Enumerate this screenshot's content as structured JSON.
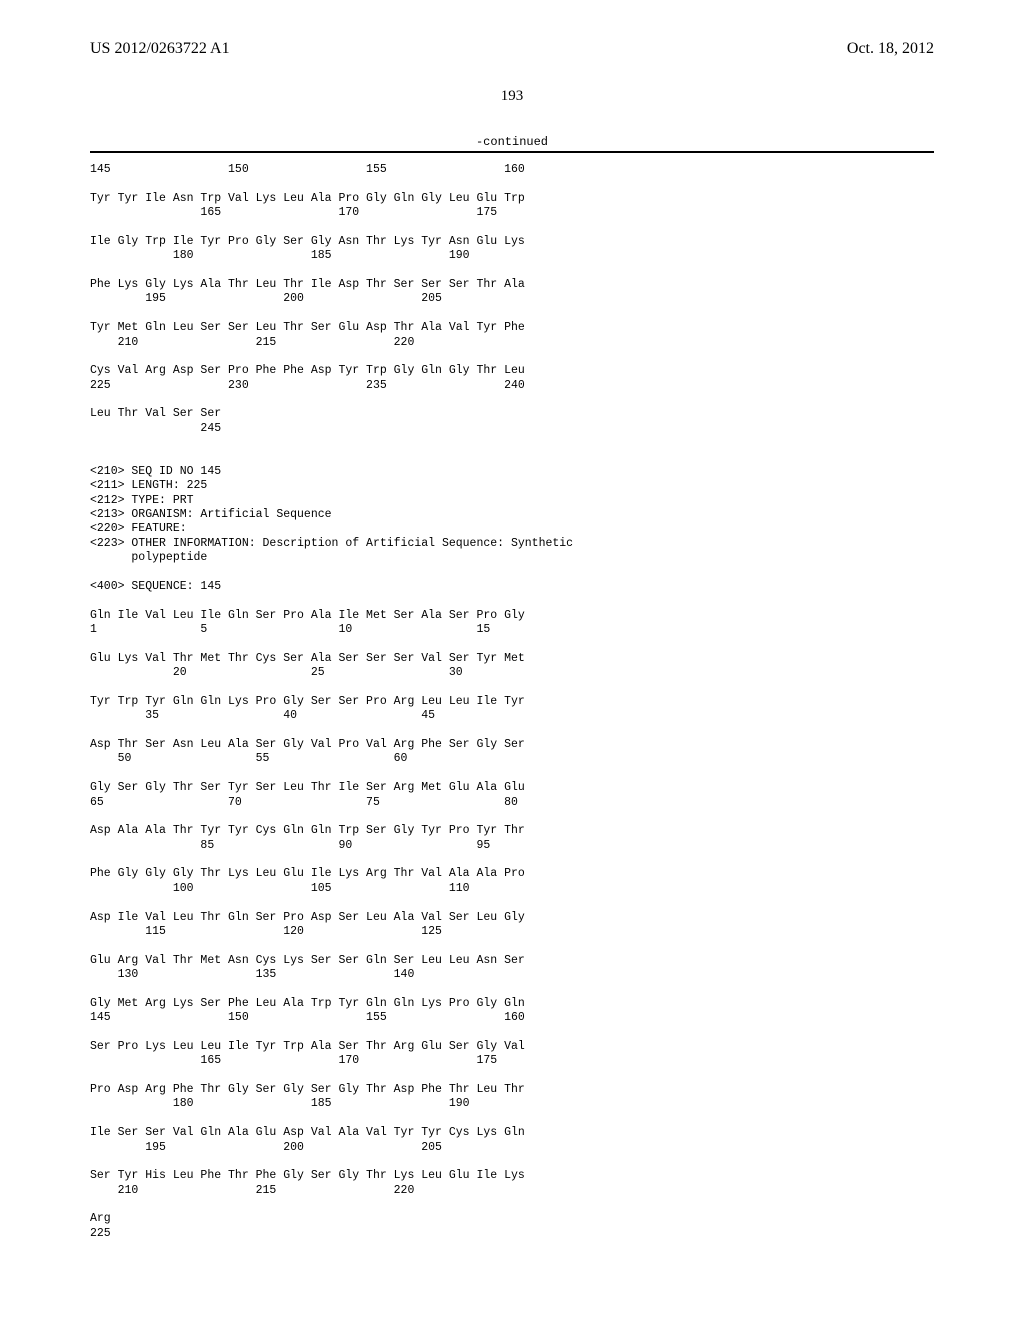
{
  "header": {
    "pub_number": "US 2012/0263722 A1",
    "pub_date": "Oct. 18, 2012"
  },
  "page_number": "193",
  "continued_label": "-continued",
  "seq_text": "145                 150                 155                 160\n\nTyr Tyr Ile Asn Trp Val Lys Leu Ala Pro Gly Gln Gly Leu Glu Trp\n                165                 170                 175\n\nIle Gly Trp Ile Tyr Pro Gly Ser Gly Asn Thr Lys Tyr Asn Glu Lys\n            180                 185                 190\n\nPhe Lys Gly Lys Ala Thr Leu Thr Ile Asp Thr Ser Ser Ser Thr Ala\n        195                 200                 205\n\nTyr Met Gln Leu Ser Ser Leu Thr Ser Glu Asp Thr Ala Val Tyr Phe\n    210                 215                 220\n\nCys Val Arg Asp Ser Pro Phe Phe Asp Tyr Trp Gly Gln Gly Thr Leu\n225                 230                 235                 240\n\nLeu Thr Val Ser Ser\n                245\n\n\n<210> SEQ ID NO 145\n<211> LENGTH: 225\n<212> TYPE: PRT\n<213> ORGANISM: Artificial Sequence\n<220> FEATURE:\n<223> OTHER INFORMATION: Description of Artificial Sequence: Synthetic\n      polypeptide\n\n<400> SEQUENCE: 145\n\nGln Ile Val Leu Ile Gln Ser Pro Ala Ile Met Ser Ala Ser Pro Gly\n1               5                   10                  15\n\nGlu Lys Val Thr Met Thr Cys Ser Ala Ser Ser Ser Val Ser Tyr Met\n            20                  25                  30\n\nTyr Trp Tyr Gln Gln Lys Pro Gly Ser Ser Pro Arg Leu Leu Ile Tyr\n        35                  40                  45\n\nAsp Thr Ser Asn Leu Ala Ser Gly Val Pro Val Arg Phe Ser Gly Ser\n    50                  55                  60\n\nGly Ser Gly Thr Ser Tyr Ser Leu Thr Ile Ser Arg Met Glu Ala Glu\n65                  70                  75                  80\n\nAsp Ala Ala Thr Tyr Tyr Cys Gln Gln Trp Ser Gly Tyr Pro Tyr Thr\n                85                  90                  95\n\nPhe Gly Gly Gly Thr Lys Leu Glu Ile Lys Arg Thr Val Ala Ala Pro\n            100                 105                 110\n\nAsp Ile Val Leu Thr Gln Ser Pro Asp Ser Leu Ala Val Ser Leu Gly\n        115                 120                 125\n\nGlu Arg Val Thr Met Asn Cys Lys Ser Ser Gln Ser Leu Leu Asn Ser\n    130                 135                 140\n\nGly Met Arg Lys Ser Phe Leu Ala Trp Tyr Gln Gln Lys Pro Gly Gln\n145                 150                 155                 160\n\nSer Pro Lys Leu Leu Ile Tyr Trp Ala Ser Thr Arg Glu Ser Gly Val\n                165                 170                 175\n\nPro Asp Arg Phe Thr Gly Ser Gly Ser Gly Thr Asp Phe Thr Leu Thr\n            180                 185                 190\n\nIle Ser Ser Val Gln Ala Glu Asp Val Ala Val Tyr Tyr Cys Lys Gln\n        195                 200                 205\n\nSer Tyr His Leu Phe Thr Phe Gly Ser Gly Thr Lys Leu Glu Ile Lys\n    210                 215                 220\n\nArg\n225"
}
